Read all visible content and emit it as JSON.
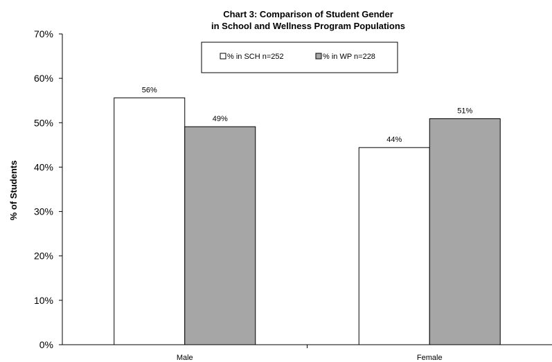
{
  "chart_data": {
    "type": "bar",
    "title": [
      "Chart 3: Comparison of Student Gender",
      "in School and Wellness Program Populations"
    ],
    "xlabel": "",
    "ylabel": "% of Students",
    "ylim": [
      0,
      70
    ],
    "y_ticks": [
      "0%",
      "10%",
      "20%",
      "30%",
      "40%",
      "50%",
      "60%",
      "70%"
    ],
    "categories": [
      "Male",
      "Female"
    ],
    "series": [
      {
        "name": "% in SCH n=252",
        "values": [
          55.6,
          44.4
        ],
        "labels": [
          "56%",
          "44%"
        ],
        "color": "#ffffff"
      },
      {
        "name": "% in WP n=228",
        "values": [
          49.1,
          50.9
        ],
        "labels": [
          "49%",
          "51%"
        ],
        "color": "#a6a6a6"
      }
    ],
    "grid": false,
    "legend": "top-center"
  }
}
